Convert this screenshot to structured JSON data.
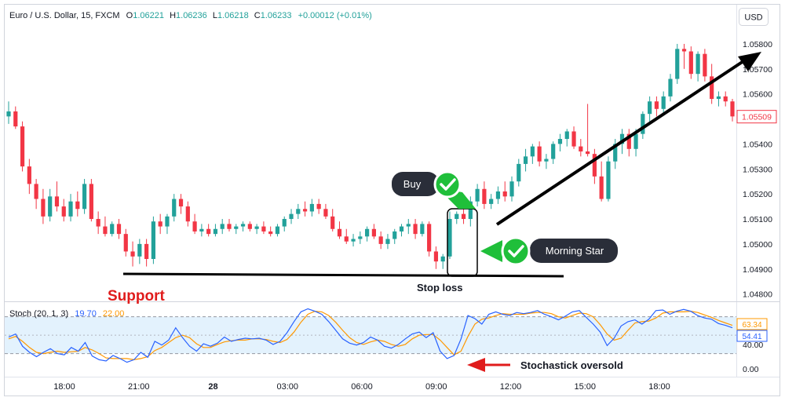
{
  "header": {
    "symbol": "Euro / U.S. Dollar, 15, FXCM",
    "open_label": "O",
    "open": "1.06221",
    "high_label": "H",
    "high": "1.06236",
    "low_label": "L",
    "low": "1.06218",
    "close_label": "C",
    "close": "1.06233",
    "change": "+0.00012 (+0.01%)"
  },
  "currency_button": "USD",
  "colors": {
    "up": "#22a19a",
    "down": "#f23645",
    "stoch_k": "#2962ff",
    "stoch_d": "#ff9800",
    "band_fill": "#e3f2fd",
    "annotation_green": "#1fbf3a",
    "annotation_dark": "#2a2e39",
    "support_text": "#e01c1c"
  },
  "price_axis": {
    "ticks": [
      "1.05800",
      "1.05700",
      "1.05600",
      "1.05509",
      "1.05400",
      "1.05300",
      "1.05200",
      "1.05100",
      "1.05000",
      "1.04900",
      "1.04800"
    ],
    "current_price": "1.05509"
  },
  "stoch": {
    "label": "Stoch (20, 1, 3)",
    "k_value": "19.70",
    "d_value": "22.00",
    "axis_ticks": [
      "40.00",
      "0.00"
    ],
    "badge_upper": "63.34",
    "badge_lower": "54.41"
  },
  "time_axis": [
    "18:00",
    "21:00",
    "28",
    "03:00",
    "06:00",
    "09:00",
    "12:00",
    "15:00",
    "18:00"
  ],
  "annotations": {
    "buy": "Buy",
    "morning_star": "Morning Star",
    "support": "Support",
    "stop_loss": "Stop loss",
    "stoch_oversold": "Stochastick oversold"
  },
  "chart_data": {
    "type": "candlestick",
    "timeframe": "15",
    "ylim": [
      1.0478,
      1.0585
    ],
    "candles": [
      {
        "o": 1.0551,
        "h": 1.0557,
        "l": 1.0548,
        "c": 1.0553
      },
      {
        "o": 1.0553,
        "h": 1.0555,
        "l": 1.0546,
        "c": 1.0547
      },
      {
        "o": 1.0547,
        "h": 1.0549,
        "l": 1.0529,
        "c": 1.0531
      },
      {
        "o": 1.0531,
        "h": 1.0534,
        "l": 1.052,
        "c": 1.0524
      },
      {
        "o": 1.0524,
        "h": 1.0526,
        "l": 1.0514,
        "c": 1.0518
      },
      {
        "o": 1.0518,
        "h": 1.0522,
        "l": 1.0508,
        "c": 1.0511
      },
      {
        "o": 1.0511,
        "h": 1.0522,
        "l": 1.0509,
        "c": 1.0519
      },
      {
        "o": 1.0519,
        "h": 1.0525,
        "l": 1.0513,
        "c": 1.0515
      },
      {
        "o": 1.0515,
        "h": 1.0518,
        "l": 1.0509,
        "c": 1.0511
      },
      {
        "o": 1.0511,
        "h": 1.052,
        "l": 1.0509,
        "c": 1.0517
      },
      {
        "o": 1.0517,
        "h": 1.0521,
        "l": 1.0511,
        "c": 1.0514
      },
      {
        "o": 1.0514,
        "h": 1.0526,
        "l": 1.0512,
        "c": 1.0524
      },
      {
        "o": 1.0524,
        "h": 1.0526,
        "l": 1.0509,
        "c": 1.051
      },
      {
        "o": 1.051,
        "h": 1.0513,
        "l": 1.0504,
        "c": 1.0507
      },
      {
        "o": 1.0507,
        "h": 1.0511,
        "l": 1.0503,
        "c": 1.0504
      },
      {
        "o": 1.0504,
        "h": 1.0509,
        "l": 1.0503,
        "c": 1.0508
      },
      {
        "o": 1.0508,
        "h": 1.051,
        "l": 1.0502,
        "c": 1.0504
      },
      {
        "o": 1.0504,
        "h": 1.0506,
        "l": 1.0495,
        "c": 1.0497
      },
      {
        "o": 1.0497,
        "h": 1.0501,
        "l": 1.0491,
        "c": 1.0495
      },
      {
        "o": 1.0495,
        "h": 1.0502,
        "l": 1.0492,
        "c": 1.05
      },
      {
        "o": 1.05,
        "h": 1.0502,
        "l": 1.0491,
        "c": 1.0494
      },
      {
        "o": 1.0494,
        "h": 1.0511,
        "l": 1.0492,
        "c": 1.0509
      },
      {
        "o": 1.0509,
        "h": 1.0512,
        "l": 1.0504,
        "c": 1.0507
      },
      {
        "o": 1.0507,
        "h": 1.0512,
        "l": 1.0504,
        "c": 1.0511
      },
      {
        "o": 1.0511,
        "h": 1.052,
        "l": 1.0509,
        "c": 1.0518
      },
      {
        "o": 1.0518,
        "h": 1.052,
        "l": 1.0512,
        "c": 1.0515
      },
      {
        "o": 1.0515,
        "h": 1.0517,
        "l": 1.0507,
        "c": 1.0509
      },
      {
        "o": 1.0509,
        "h": 1.0512,
        "l": 1.0504,
        "c": 1.0505
      },
      {
        "o": 1.0505,
        "h": 1.0508,
        "l": 1.0503,
        "c": 1.0506
      },
      {
        "o": 1.0506,
        "h": 1.0508,
        "l": 1.0503,
        "c": 1.0504
      },
      {
        "o": 1.0504,
        "h": 1.0508,
        "l": 1.0503,
        "c": 1.0506
      },
      {
        "o": 1.0506,
        "h": 1.051,
        "l": 1.0504,
        "c": 1.0508
      },
      {
        "o": 1.0508,
        "h": 1.051,
        "l": 1.0505,
        "c": 1.0506
      },
      {
        "o": 1.0506,
        "h": 1.0508,
        "l": 1.0504,
        "c": 1.0507
      },
      {
        "o": 1.0507,
        "h": 1.0509,
        "l": 1.0505,
        "c": 1.0508
      },
      {
        "o": 1.0508,
        "h": 1.0509,
        "l": 1.0505,
        "c": 1.0506
      },
      {
        "o": 1.0506,
        "h": 1.0508,
        "l": 1.0504,
        "c": 1.0507
      },
      {
        "o": 1.0507,
        "h": 1.0509,
        "l": 1.0504,
        "c": 1.0505
      },
      {
        "o": 1.0505,
        "h": 1.0507,
        "l": 1.0503,
        "c": 1.0504
      },
      {
        "o": 1.0504,
        "h": 1.0508,
        "l": 1.0503,
        "c": 1.0507
      },
      {
        "o": 1.0507,
        "h": 1.0511,
        "l": 1.0505,
        "c": 1.051
      },
      {
        "o": 1.051,
        "h": 1.0514,
        "l": 1.0508,
        "c": 1.0512
      },
      {
        "o": 1.0512,
        "h": 1.0516,
        "l": 1.051,
        "c": 1.0514
      },
      {
        "o": 1.0514,
        "h": 1.0517,
        "l": 1.0511,
        "c": 1.0513
      },
      {
        "o": 1.0513,
        "h": 1.0518,
        "l": 1.0511,
        "c": 1.0516
      },
      {
        "o": 1.0516,
        "h": 1.0518,
        "l": 1.0512,
        "c": 1.0514
      },
      {
        "o": 1.0514,
        "h": 1.0516,
        "l": 1.051,
        "c": 1.0511
      },
      {
        "o": 1.0511,
        "h": 1.0514,
        "l": 1.0505,
        "c": 1.0506
      },
      {
        "o": 1.0506,
        "h": 1.0509,
        "l": 1.0502,
        "c": 1.0503
      },
      {
        "o": 1.0503,
        "h": 1.0506,
        "l": 1.05,
        "c": 1.0501
      },
      {
        "o": 1.0501,
        "h": 1.0504,
        "l": 1.0499,
        "c": 1.0502
      },
      {
        "o": 1.0502,
        "h": 1.0505,
        "l": 1.05,
        "c": 1.0503
      },
      {
        "o": 1.0503,
        "h": 1.0507,
        "l": 1.0501,
        "c": 1.0506
      },
      {
        "o": 1.0506,
        "h": 1.0508,
        "l": 1.0502,
        "c": 1.0503
      },
      {
        "o": 1.0503,
        "h": 1.0505,
        "l": 1.0498,
        "c": 1.05
      },
      {
        "o": 1.05,
        "h": 1.0504,
        "l": 1.0498,
        "c": 1.0502
      },
      {
        "o": 1.0502,
        "h": 1.0506,
        "l": 1.05,
        "c": 1.0505
      },
      {
        "o": 1.0505,
        "h": 1.0508,
        "l": 1.0503,
        "c": 1.0507
      },
      {
        "o": 1.0507,
        "h": 1.051,
        "l": 1.0504,
        "c": 1.0508
      },
      {
        "o": 1.0508,
        "h": 1.051,
        "l": 1.0502,
        "c": 1.0504
      },
      {
        "o": 1.0504,
        "h": 1.0509,
        "l": 1.0503,
        "c": 1.0508
      },
      {
        "o": 1.0508,
        "h": 1.0509,
        "l": 1.0495,
        "c": 1.0497
      },
      {
        "o": 1.0497,
        "h": 1.0499,
        "l": 1.049,
        "c": 1.0493
      },
      {
        "o": 1.0493,
        "h": 1.0496,
        "l": 1.049,
        "c": 1.0495
      },
      {
        "o": 1.0495,
        "h": 1.0513,
        "l": 1.0494,
        "c": 1.051
      },
      {
        "o": 1.051,
        "h": 1.0513,
        "l": 1.0508,
        "c": 1.0512
      },
      {
        "o": 1.0512,
        "h": 1.0516,
        "l": 1.0508,
        "c": 1.051
      },
      {
        "o": 1.051,
        "h": 1.0519,
        "l": 1.0507,
        "c": 1.0517
      },
      {
        "o": 1.0517,
        "h": 1.0524,
        "l": 1.0515,
        "c": 1.0522
      },
      {
        "o": 1.0522,
        "h": 1.0525,
        "l": 1.0514,
        "c": 1.0516
      },
      {
        "o": 1.0516,
        "h": 1.052,
        "l": 1.0514,
        "c": 1.0518
      },
      {
        "o": 1.0518,
        "h": 1.0523,
        "l": 1.0516,
        "c": 1.0521
      },
      {
        "o": 1.0521,
        "h": 1.0525,
        "l": 1.0517,
        "c": 1.0519
      },
      {
        "o": 1.0519,
        "h": 1.0527,
        "l": 1.0517,
        "c": 1.0525
      },
      {
        "o": 1.0525,
        "h": 1.0534,
        "l": 1.0523,
        "c": 1.0532
      },
      {
        "o": 1.0532,
        "h": 1.0538,
        "l": 1.0529,
        "c": 1.0535
      },
      {
        "o": 1.0535,
        "h": 1.054,
        "l": 1.0532,
        "c": 1.0539
      },
      {
        "o": 1.0539,
        "h": 1.0541,
        "l": 1.0531,
        "c": 1.0533
      },
      {
        "o": 1.0533,
        "h": 1.0536,
        "l": 1.053,
        "c": 1.0534
      },
      {
        "o": 1.0534,
        "h": 1.0541,
        "l": 1.0532,
        "c": 1.054
      },
      {
        "o": 1.054,
        "h": 1.0544,
        "l": 1.0537,
        "c": 1.0542
      },
      {
        "o": 1.0542,
        "h": 1.0546,
        "l": 1.0539,
        "c": 1.0545
      },
      {
        "o": 1.0545,
        "h": 1.0547,
        "l": 1.0538,
        "c": 1.0539
      },
      {
        "o": 1.0539,
        "h": 1.0542,
        "l": 1.0535,
        "c": 1.0537
      },
      {
        "o": 1.0537,
        "h": 1.0556,
        "l": 1.0535,
        "c": 1.0536
      },
      {
        "o": 1.0536,
        "h": 1.0538,
        "l": 1.0524,
        "c": 1.0527
      },
      {
        "o": 1.0527,
        "h": 1.0533,
        "l": 1.0517,
        "c": 1.0518
      },
      {
        "o": 1.0518,
        "h": 1.0535,
        "l": 1.0517,
        "c": 1.0533
      },
      {
        "o": 1.0533,
        "h": 1.0542,
        "l": 1.053,
        "c": 1.054
      },
      {
        "o": 1.054,
        "h": 1.0546,
        "l": 1.0536,
        "c": 1.0544
      },
      {
        "o": 1.0544,
        "h": 1.0546,
        "l": 1.0535,
        "c": 1.0538
      },
      {
        "o": 1.0538,
        "h": 1.0546,
        "l": 1.0535,
        "c": 1.0544
      },
      {
        "o": 1.0544,
        "h": 1.0553,
        "l": 1.0542,
        "c": 1.0552
      },
      {
        "o": 1.0552,
        "h": 1.0559,
        "l": 1.0549,
        "c": 1.0557
      },
      {
        "o": 1.0557,
        "h": 1.0559,
        "l": 1.0551,
        "c": 1.0554
      },
      {
        "o": 1.0554,
        "h": 1.0561,
        "l": 1.0552,
        "c": 1.0559
      },
      {
        "o": 1.0559,
        "h": 1.0568,
        "l": 1.0557,
        "c": 1.0566
      },
      {
        "o": 1.0566,
        "h": 1.058,
        "l": 1.0564,
        "c": 1.0578
      },
      {
        "o": 1.0578,
        "h": 1.058,
        "l": 1.057,
        "c": 1.0577
      },
      {
        "o": 1.0577,
        "h": 1.0579,
        "l": 1.0566,
        "c": 1.0568
      },
      {
        "o": 1.0568,
        "h": 1.0577,
        "l": 1.0565,
        "c": 1.0576
      },
      {
        "o": 1.0576,
        "h": 1.0578,
        "l": 1.0565,
        "c": 1.0567
      },
      {
        "o": 1.0567,
        "h": 1.0572,
        "l": 1.0556,
        "c": 1.0558
      },
      {
        "o": 1.0558,
        "h": 1.0561,
        "l": 1.0555,
        "c": 1.0559
      },
      {
        "o": 1.0559,
        "h": 1.0561,
        "l": 1.0555,
        "c": 1.0557
      },
      {
        "o": 1.0557,
        "h": 1.0558,
        "l": 1.0549,
        "c": 1.0551
      }
    ],
    "stochastic": {
      "ylim": [
        -15,
        100
      ],
      "levels": [
        80,
        20
      ],
      "k": [
        47,
        52,
        32,
        22,
        15,
        22,
        28,
        20,
        18,
        30,
        24,
        38,
        16,
        10,
        8,
        17,
        12,
        6,
        10,
        22,
        14,
        40,
        34,
        42,
        62,
        46,
        32,
        24,
        36,
        32,
        37,
        47,
        40,
        43,
        45,
        44,
        45,
        42,
        35,
        40,
        54,
        72,
        88,
        93,
        89,
        84,
        72,
        58,
        44,
        37,
        34,
        38,
        47,
        42,
        32,
        29,
        35,
        44,
        52,
        55,
        46,
        54,
        24,
        12,
        17,
        44,
        82,
        77,
        68,
        84,
        88,
        84,
        82,
        87,
        85,
        87,
        90,
        84,
        80,
        75,
        81,
        88,
        90,
        79,
        68,
        55,
        33,
        45,
        65,
        72,
        75,
        68,
        76,
        90,
        91,
        84,
        89,
        92,
        89,
        82,
        78,
        76,
        69,
        66,
        62
      ],
      "d": [
        44,
        48,
        40,
        30,
        22,
        20,
        22,
        24,
        22,
        23,
        24,
        30,
        26,
        20,
        13,
        12,
        12,
        12,
        10,
        12,
        15,
        25,
        30,
        38,
        46,
        50,
        46,
        36,
        30,
        30,
        35,
        39,
        41,
        42,
        42,
        44,
        44,
        43,
        40,
        38,
        43,
        55,
        71,
        84,
        89,
        88,
        82,
        71,
        58,
        46,
        38,
        35,
        39,
        42,
        40,
        35,
        32,
        35,
        44,
        50,
        51,
        51,
        42,
        30,
        18,
        24,
        48,
        68,
        76,
        78,
        82,
        85,
        84,
        84,
        84,
        86,
        87,
        87,
        85,
        80,
        78,
        82,
        86,
        85,
        80,
        67,
        52,
        42,
        45,
        58,
        70,
        72,
        73,
        78,
        86,
        88,
        88,
        88,
        89,
        87,
        83,
        79,
        74,
        70,
        66
      ]
    }
  }
}
